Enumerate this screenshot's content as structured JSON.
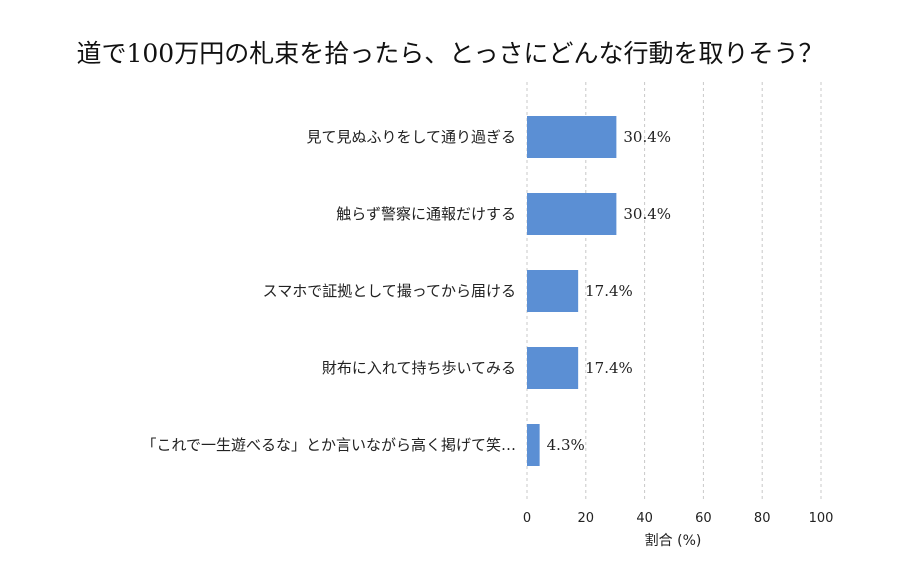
{
  "chart_data": {
    "type": "bar",
    "orientation": "horizontal",
    "title": "道で100万円の札束を拾ったら、とっさにどんな行動を取りそう？",
    "categories": [
      "見て見ぬふりをして通り過ぎる",
      "触らず警察に通報だけする",
      "スマホで証拠として撮ってから届ける",
      "財布に入れて持ち歩いてみる",
      "「これで一生遊べるな」とか言いながら高く掲げて笑…"
    ],
    "values": [
      30.4,
      30.4,
      17.4,
      17.4,
      4.3
    ],
    "value_labels": [
      "30.4%",
      "30.4%",
      "17.4%",
      "17.4%",
      "4.3%"
    ],
    "xlabel": "割合 (%)",
    "ylabel": "",
    "xlim": [
      0,
      100
    ],
    "xticks": [
      "0",
      "20",
      "40",
      "60",
      "80",
      "100"
    ],
    "xtick_values": [
      0,
      20,
      40,
      60,
      80,
      100
    ],
    "grid": true,
    "bar_color": "#5b8fd4"
  }
}
